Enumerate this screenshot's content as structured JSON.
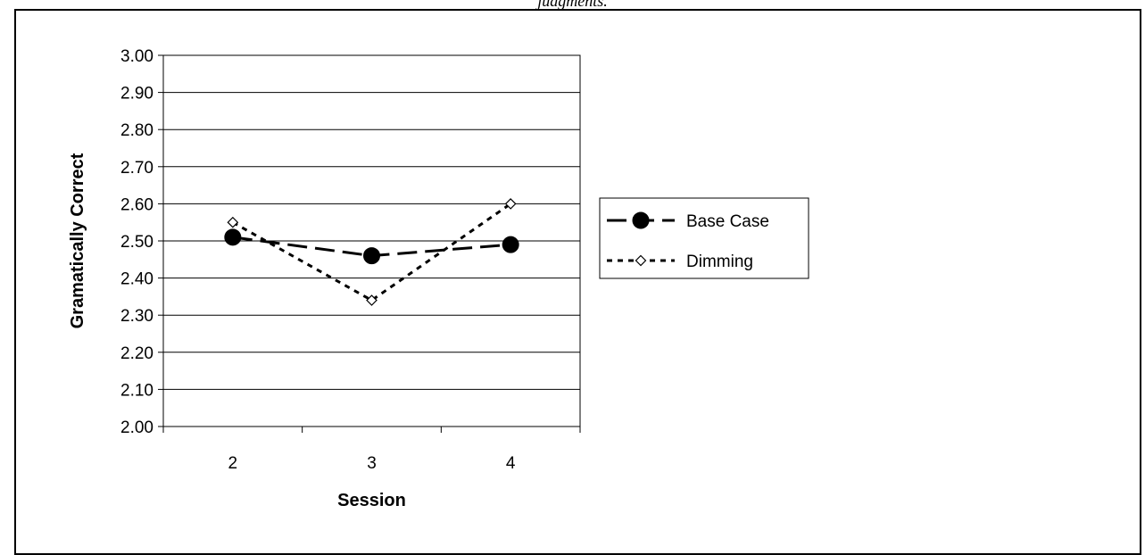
{
  "caption": "judgments.",
  "chart_data": {
    "type": "line",
    "categories": [
      "2",
      "3",
      "4"
    ],
    "series": [
      {
        "name": "Base Case",
        "values": [
          2.51,
          2.46,
          2.49
        ],
        "color": "#000000",
        "marker": "filled-circle",
        "dash": "long-dash"
      },
      {
        "name": "Dimming",
        "values": [
          2.55,
          2.34,
          2.6
        ],
        "color": "#000000",
        "marker": "open-diamond",
        "dash": "dotted"
      }
    ],
    "xlabel": "Session",
    "ylabel": "Gramatically Correct",
    "ylim": [
      2.0,
      3.0
    ],
    "yticks": [
      "3.00",
      "2.90",
      "2.80",
      "2.70",
      "2.60",
      "2.50",
      "2.40",
      "2.30",
      "2.20",
      "2.10",
      "2.00"
    ],
    "grid": true,
    "legend_position": "right"
  }
}
